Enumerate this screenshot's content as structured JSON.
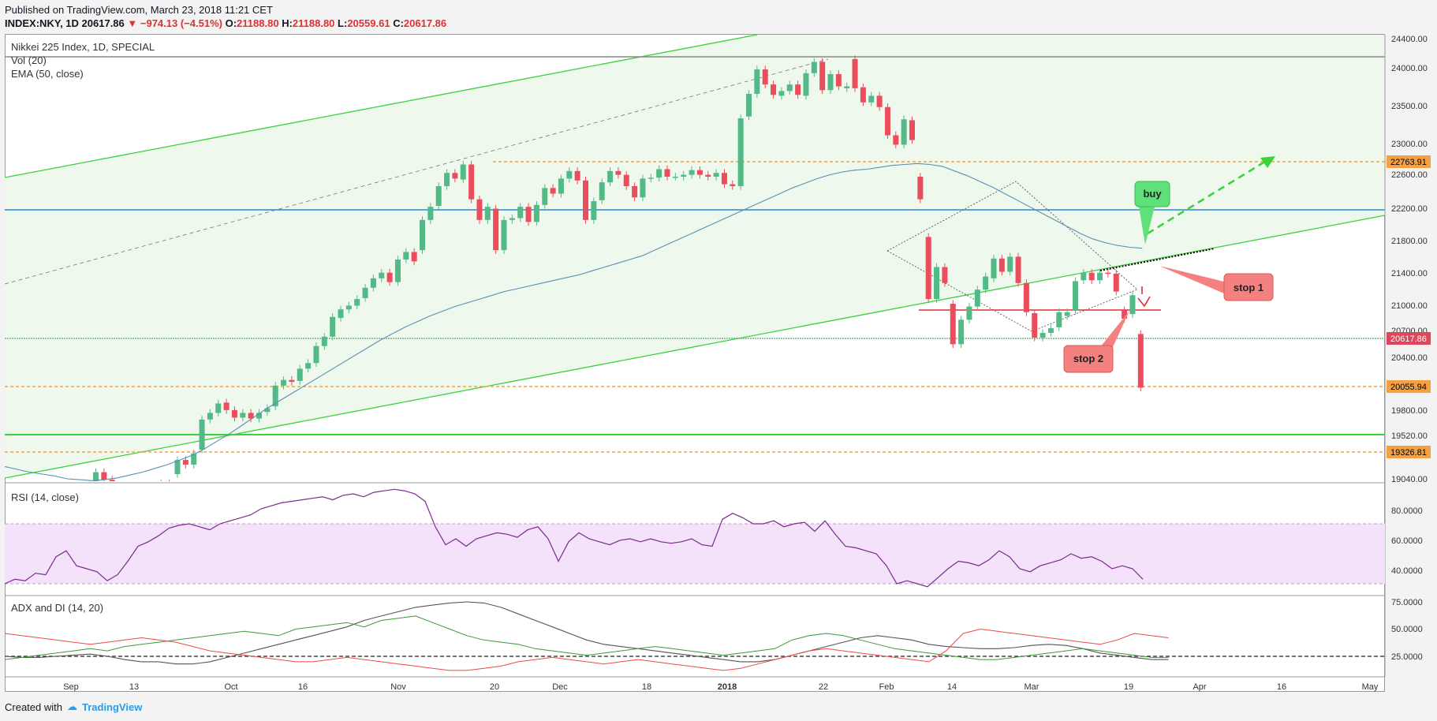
{
  "header": {
    "published": "Published on TradingView.com, March 23, 2018 11:21 CET",
    "symbol": "INDEX:NKY, 1D",
    "last": "20617.86",
    "change": "▼ −974.13 (−4.51%)",
    "o_label": "O:",
    "o_value": "21188.80",
    "h_label": "H:",
    "h_value": "21188.80",
    "l_label": "L:",
    "l_value": "20559.61",
    "c_label": "C:",
    "c_value": "20617.86"
  },
  "panes": {
    "main_title": "Nikkei 225 Index, 1D, SPECIAL",
    "vol_label": "Vol (20)",
    "ema_label": "EMA (50, close)",
    "rsi_label": "RSI (14, close)",
    "adx_label": "ADX and DI (14, 20)"
  },
  "price_axis": [
    "24400.00",
    "24000.00",
    "23500.00",
    "23000.00",
    "22600.00",
    "22200.00",
    "21800.00",
    "21400.00",
    "21000.00",
    "20700.00",
    "20400.00",
    "19800.00",
    "19520.00",
    "19040.00"
  ],
  "price_tags": [
    {
      "text": "22763.91",
      "bg": "#f5a142"
    },
    {
      "text": "20617.86",
      "bg": "#e0455a"
    },
    {
      "text": "20055.94",
      "bg": "#f5a142"
    },
    {
      "text": "19326.81",
      "bg": "#f5a142"
    }
  ],
  "rsi_axis": [
    "80.0000",
    "60.0000",
    "40.0000"
  ],
  "adx_axis": [
    "75.0000",
    "50.0000",
    "25.0000"
  ],
  "x_axis": [
    "Sep",
    "13",
    "Oct",
    "16",
    "Nov",
    "20",
    "Dec",
    "18",
    "2018",
    "22",
    "Feb",
    "14",
    "Mar",
    "19",
    "Apr",
    "16",
    "May"
  ],
  "annotations": {
    "buy": "buy",
    "stop1": "stop 1",
    "stop2": "stop 2"
  },
  "footer": {
    "created_with": "Created with",
    "brand": "TradingView"
  },
  "colors": {
    "up": "#53b987",
    "down": "#eb4d5c",
    "ema": "#5a8fb5",
    "green_line": "#3ad13a",
    "blue_line": "#2a88d0",
    "orange": "#f5a142",
    "rsi": "#7b2a8e",
    "rsi_band": "#f3e2fa",
    "adx": "#555555",
    "di_plus": "#3a9a3a",
    "di_minus": "#f04848"
  },
  "chart_data": {
    "type": "candlestick",
    "title": "Nikkei 225 Index, 1D, SPECIAL",
    "symbol": "INDEX:NKY",
    "ylim": [
      18900,
      24500
    ],
    "levels": {
      "resistance_high": 24120,
      "blue_line": 22160,
      "orange_1": 22763.91,
      "current": 20617.86,
      "orange_2": 20055.94,
      "green_line": 19520,
      "orange_3": 19326.81
    },
    "candles": [
      [
        19450,
        19330
      ],
      [
        19360,
        19420
      ],
      [
        19420,
        19380
      ],
      [
        19390,
        19450
      ],
      [
        19440,
        19370
      ],
      [
        19360,
        19310
      ],
      [
        19350,
        19480
      ],
      [
        19480,
        19460
      ],
      [
        19460,
        19510
      ],
      [
        19500,
        19460
      ],
      [
        19620,
        19720
      ],
      [
        19720,
        19640
      ],
      [
        19640,
        19500
      ],
      [
        19500,
        19420
      ],
      [
        19420,
        19350
      ],
      [
        19350,
        19300
      ],
      [
        19310,
        19420
      ],
      [
        19420,
        19520
      ],
      [
        19520,
        19600
      ],
      [
        19600,
        19560
      ],
      [
        19700,
        19850
      ],
      [
        19850,
        19800
      ],
      [
        19800,
        19920
      ],
      [
        19960,
        20280
      ],
      [
        20280,
        20350
      ],
      [
        20350,
        20450
      ],
      [
        20460,
        20380
      ],
      [
        20380,
        20300
      ],
      [
        20300,
        20350
      ],
      [
        20350,
        20290
      ],
      [
        20290,
        20350
      ],
      [
        20360,
        20400
      ],
      [
        20420,
        20640
      ],
      [
        20640,
        20700
      ],
      [
        20700,
        20680
      ],
      [
        20690,
        20820
      ],
      [
        20820,
        20880
      ],
      [
        20880,
        21060
      ],
      [
        21060,
        21160
      ],
      [
        21160,
        21370
      ],
      [
        21360,
        21450
      ],
      [
        21450,
        21490
      ],
      [
        21490,
        21560
      ],
      [
        21570,
        21680
      ],
      [
        21680,
        21780
      ],
      [
        21780,
        21840
      ],
      [
        21840,
        21740
      ],
      [
        21740,
        21980
      ],
      [
        21980,
        22060
      ],
      [
        22060,
        21960
      ],
      [
        22080,
        22400
      ],
      [
        22400,
        22540
      ],
      [
        22550,
        22760
      ],
      [
        22760,
        22900
      ],
      [
        22900,
        22840
      ],
      [
        22830,
        22990
      ],
      [
        22990,
        22620
      ],
      [
        22620,
        22400
      ],
      [
        22400,
        22540
      ],
      [
        22520,
        22080
      ],
      [
        22080,
        22400
      ],
      [
        22400,
        22420
      ],
      [
        22420,
        22540
      ],
      [
        22540,
        22380
      ],
      [
        22380,
        22560
      ],
      [
        22560,
        22740
      ],
      [
        22740,
        22680
      ],
      [
        22680,
        22840
      ],
      [
        22840,
        22920
      ],
      [
        22920,
        22820
      ],
      [
        22820,
        22400
      ],
      [
        22400,
        22600
      ],
      [
        22610,
        22800
      ],
      [
        22800,
        22920
      ],
      [
        22920,
        22880
      ],
      [
        22880,
        22760
      ],
      [
        22760,
        22640
      ],
      [
        22640,
        22840
      ],
      [
        22840,
        22850
      ],
      [
        22850,
        22940
      ],
      [
        22940,
        22860
      ],
      [
        22860,
        22860
      ],
      [
        22860,
        22880
      ],
      [
        22880,
        22930
      ],
      [
        22930,
        22880
      ],
      [
        22880,
        22860
      ],
      [
        22860,
        22900
      ],
      [
        22900,
        22780
      ],
      [
        22780,
        22760
      ],
      [
        22760,
        23480
      ],
      [
        23500,
        23740
      ],
      [
        23740,
        24000
      ],
      [
        24000,
        23840
      ],
      [
        23840,
        23730
      ],
      [
        23720,
        23770
      ],
      [
        23770,
        23840
      ],
      [
        23840,
        23730
      ],
      [
        23720,
        23960
      ],
      [
        23960,
        24080
      ],
      [
        24080,
        23780
      ],
      [
        23780,
        23950
      ],
      [
        23950,
        23820
      ],
      [
        23800,
        23820
      ],
      [
        24110,
        23800
      ],
      [
        23810,
        23650
      ],
      [
        23650,
        23720
      ],
      [
        23720,
        23600
      ],
      [
        23600,
        23300
      ],
      [
        23300,
        23200
      ],
      [
        23200,
        23470
      ],
      [
        23460,
        23250
      ],
      [
        22860,
        22620
      ],
      [
        22220,
        21560
      ],
      [
        21560,
        21900
      ],
      [
        21900,
        21730
      ],
      [
        21510,
        21080
      ],
      [
        21080,
        21340
      ],
      [
        21340,
        21480
      ],
      [
        21480,
        21660
      ],
      [
        21660,
        21800
      ],
      [
        21780,
        21990
      ],
      [
        21990,
        21850
      ],
      [
        21850,
        22010
      ],
      [
        22010,
        21730
      ],
      [
        21730,
        21420
      ],
      [
        21410,
        21150
      ],
      [
        21150,
        21200
      ],
      [
        21200,
        21250
      ],
      [
        21260,
        21420
      ],
      [
        21380,
        21420
      ],
      [
        21440,
        21750
      ],
      [
        21760,
        21840
      ],
      [
        21840,
        21760
      ],
      [
        21760,
        21840
      ],
      [
        21840,
        21830
      ],
      [
        21830,
        21640
      ],
      [
        21440,
        21350
      ],
      [
        21400,
        21600
      ],
      [
        21188.8,
        20617.86
      ]
    ],
    "ema50": [
      19780,
      19750,
      19720,
      19700,
      19680,
      19650,
      19640,
      19630,
      19640,
      19660,
      19690,
      19720,
      19760,
      19800,
      19850,
      19900,
      19970,
      20050,
      20130,
      20220,
      20310,
      20400,
      20480,
      20560,
      20640,
      20720,
      20800,
      20880,
      20960,
      21040,
      21120,
      21190,
      21260,
      21320,
      21380,
      21430,
      21480,
      21520,
      21560,
      21600,
      21640,
      21670,
      21700,
      21730,
      21760,
      21790,
      21820,
      21860,
      21900,
      21940,
      21980,
      22020,
      22080,
      22140,
      22200,
      22260,
      22320,
      22380,
      22440,
      22500,
      22560,
      22620,
      22680,
      22740,
      22790,
      22840,
      22880,
      22910,
      22930,
      22940,
      22960,
      22980,
      22990,
      23000,
      22990,
      22970,
      22920,
      22870,
      22810,
      22750,
      22680,
      22610,
      22540,
      22470,
      22400,
      22330,
      22260,
      22200,
      22160,
      22130,
      22110,
      22100
    ],
    "rsi": [
      30,
      33,
      32,
      37,
      36,
      48,
      52,
      42,
      40,
      38,
      32,
      36,
      45,
      55,
      58,
      62,
      67,
      69,
      70,
      68,
      66,
      70,
      72,
      74,
      76,
      80,
      82,
      84,
      85,
      86,
      87,
      88,
      86,
      89,
      90,
      88,
      91,
      92,
      93,
      92,
      90,
      85,
      68,
      56,
      60,
      55,
      60,
      62,
      64,
      63,
      61,
      66,
      68,
      60,
      45,
      58,
      64,
      60,
      58,
      56,
      59,
      60,
      58,
      60,
      58,
      57,
      58,
      60,
      56,
      55,
      73,
      77,
      74,
      70,
      70,
      72,
      68,
      70,
      71,
      65,
      72,
      63,
      55,
      54,
      52,
      50,
      42,
      30,
      32,
      30,
      28,
      34,
      40,
      45,
      44,
      42,
      46,
      52,
      48,
      40,
      38,
      42,
      44,
      46,
      50,
      47,
      48,
      45,
      40,
      42,
      40,
      33
    ],
    "adx": [
      25,
      24,
      24,
      25,
      26,
      27,
      25,
      22,
      20,
      20,
      18,
      18,
      20,
      24,
      28,
      32,
      36,
      40,
      44,
      48,
      52,
      58,
      62,
      66,
      70,
      72,
      74,
      75,
      74,
      70,
      64,
      58,
      52,
      46,
      40,
      36,
      34,
      32,
      30,
      28,
      26,
      24,
      22,
      20,
      20,
      22,
      26,
      30,
      34,
      38,
      42,
      44,
      42,
      40,
      36,
      34,
      33,
      32,
      32,
      33,
      35,
      36,
      35,
      32,
      28,
      26,
      24,
      22,
      22
    ],
    "di_plus": [
      22,
      24,
      26,
      28,
      30,
      32,
      30,
      34,
      36,
      38,
      40,
      42,
      44,
      46,
      48,
      46,
      44,
      50,
      52,
      54,
      56,
      52,
      58,
      60,
      62,
      56,
      50,
      44,
      40,
      38,
      36,
      32,
      30,
      28,
      26,
      28,
      30,
      32,
      34,
      32,
      30,
      28,
      26,
      28,
      30,
      32,
      40,
      44,
      46,
      44,
      40,
      36,
      32,
      30,
      28,
      26,
      24,
      22,
      22,
      24,
      26,
      28,
      30,
      32,
      30,
      28,
      26,
      24,
      24
    ],
    "di_minus": [
      46,
      44,
      42,
      40,
      38,
      36,
      38,
      40,
      42,
      40,
      38,
      34,
      30,
      28,
      26,
      24,
      22,
      20,
      20,
      22,
      24,
      22,
      20,
      18,
      16,
      14,
      12,
      12,
      14,
      16,
      20,
      22,
      24,
      22,
      20,
      18,
      20,
      22,
      20,
      18,
      16,
      14,
      12,
      14,
      18,
      22,
      26,
      30,
      32,
      30,
      28,
      26,
      24,
      22,
      20,
      30,
      46,
      50,
      48,
      46,
      44,
      42,
      40,
      38,
      36,
      40,
      46,
      44,
      42
    ]
  }
}
